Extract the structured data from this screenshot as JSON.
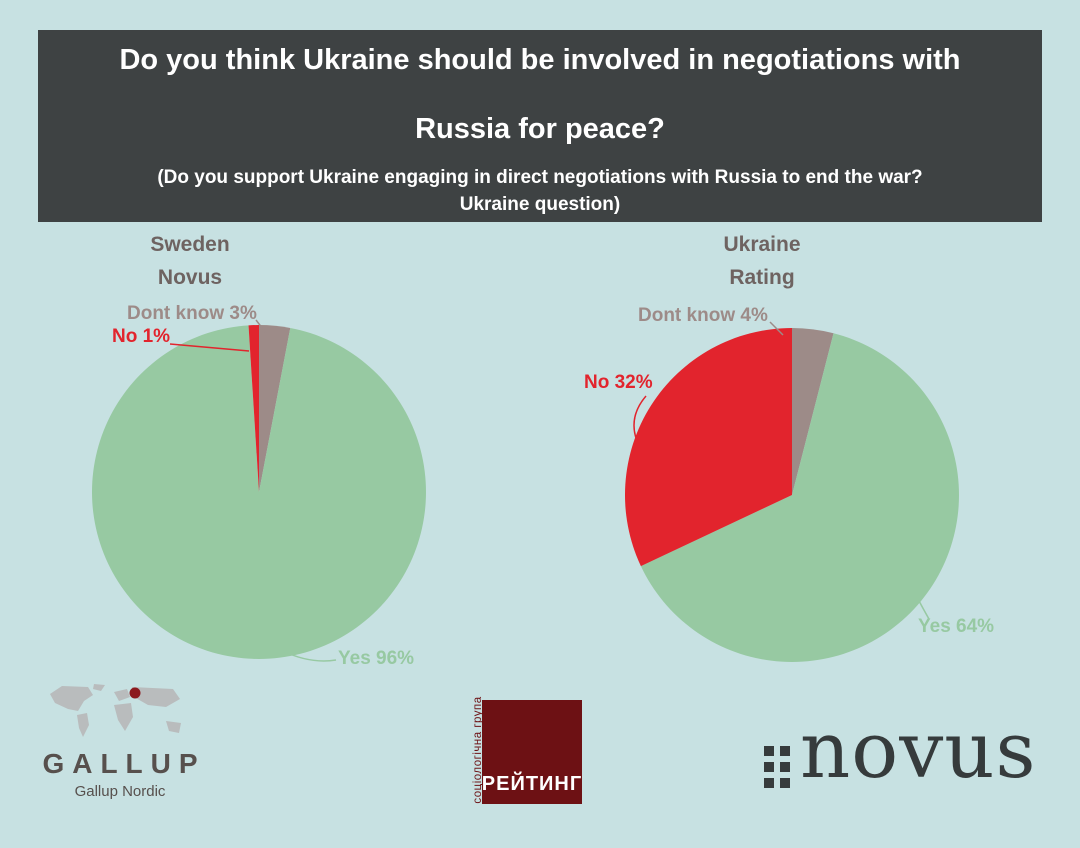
{
  "page": {
    "background": "#c7e1e2"
  },
  "header": {
    "background": "#3e4243",
    "text_color": "#ffffff",
    "title_line1": "Do you think Ukraine should be involved in negotiations with",
    "title_line2": "Russia for peace?",
    "subtitle_line1": "(Do you support Ukraine engaging in direct negotiations with Russia to end the war?",
    "subtitle_line2": "Ukraine question)"
  },
  "colors": {
    "yes": "#97c9a2",
    "no": "#e2242d",
    "dont_know": "#9d8b88",
    "chart_titles": "#6e6361"
  },
  "chart_data": [
    {
      "type": "pie",
      "country": "Sweden",
      "pollster": "Novus",
      "start_angle_deg": 0,
      "direction": "clockwise",
      "slices": [
        {
          "label": "Dont know",
          "value": 3,
          "color": "#9d8b88",
          "callout": "Dont know 3%"
        },
        {
          "label": "Yes",
          "value": 96,
          "color": "#97c9a2",
          "callout": "Yes 96%"
        },
        {
          "label": "No",
          "value": 1,
          "color": "#e2242d",
          "callout": "No 1%"
        }
      ]
    },
    {
      "type": "pie",
      "country": "Ukraine",
      "pollster": "Rating",
      "start_angle_deg": 0,
      "direction": "clockwise",
      "slices": [
        {
          "label": "Dont know",
          "value": 4,
          "color": "#9d8b88",
          "callout": "Dont know 4%"
        },
        {
          "label": "Yes",
          "value": 64,
          "color": "#97c9a2",
          "callout": "Yes 64%"
        },
        {
          "label": "No",
          "value": 32,
          "color": "#e2242d",
          "callout": "No 32%"
        }
      ]
    }
  ],
  "logos": {
    "gallup": {
      "name": "GALLUP",
      "sub": "Gallup Nordic",
      "text_color": "#57504d",
      "map_color": "#b9bcbd",
      "dot_color": "#8c1a1f"
    },
    "rating": {
      "name": "РЕЙТИНГ",
      "vertical_text": "соціологічна група",
      "square_color": "#6d1114",
      "text_color": "#ffffff",
      "accent_color": "#6d1114"
    },
    "novus": {
      "name": "novus",
      "color": "#363b3c"
    }
  }
}
